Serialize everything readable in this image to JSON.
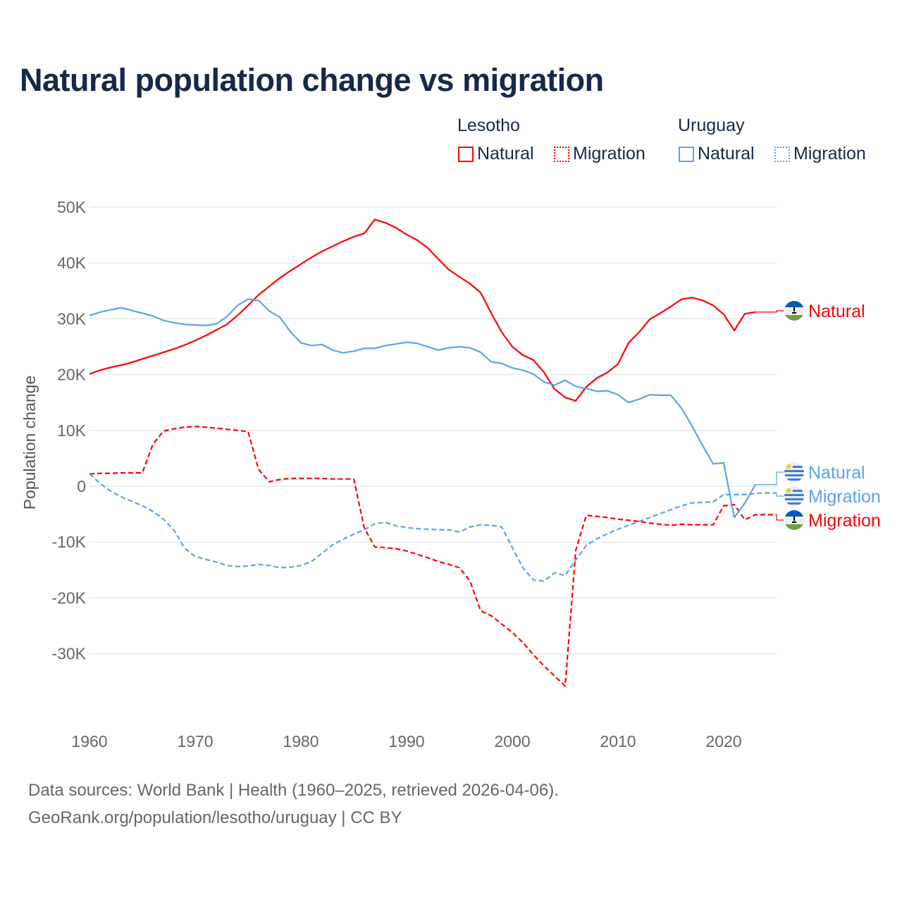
{
  "title": "Natural population change vs migration",
  "legend": {
    "groups": [
      {
        "name": "Lesotho",
        "items": [
          "Natural",
          "Migration"
        ],
        "color": "#ff0000"
      },
      {
        "name": "Uruguay",
        "items": [
          "Natural",
          "Migration"
        ],
        "color": "#5ba3ec"
      }
    ]
  },
  "footer": {
    "line1": "Data sources: World Bank | Health (1960–2025, retrieved 2026-04-06).",
    "line2": "GeoRank.org/population/lesotho/uruguay | CC BY"
  },
  "chart_data": {
    "type": "line",
    "title": "Natural population change vs migration",
    "xlabel": "",
    "ylabel": "Population change",
    "xlim": [
      1960,
      2025
    ],
    "ylim": [
      -40000,
      50000
    ],
    "x_ticks": [
      1960,
      1970,
      1980,
      1990,
      2000,
      2010,
      2020
    ],
    "x_tick_labels": [
      "1960",
      "1970",
      "1980",
      "1990",
      "2000",
      "2010",
      "2020"
    ],
    "y_ticks": [
      50000,
      40000,
      30000,
      20000,
      10000,
      0,
      -10000,
      -20000,
      -30000
    ],
    "y_tick_labels": [
      "50K",
      "40K",
      "30K",
      "20K",
      "10K",
      "0",
      "-10K",
      "-20K",
      "-30K"
    ],
    "grid": true,
    "legend_position": "top-right",
    "series": [
      {
        "name": "Lesotho Natural",
        "label": "Natural",
        "flag": "lesotho",
        "color": "#ff0000",
        "dash": false,
        "start": 1960,
        "values_k": [
          20.1,
          20.8,
          21.3,
          21.7,
          22.2,
          22.8,
          23.4,
          24.0,
          24.6,
          25.3,
          26.1,
          27.0,
          28.0,
          29.0,
          30.6,
          32.4,
          34.3,
          35.8,
          37.3,
          38.6,
          39.8,
          41.0,
          42.1,
          43.0,
          43.9,
          44.7,
          45.3,
          47.8,
          47.2,
          46.3,
          45.1,
          44.1,
          42.7,
          40.7,
          38.8,
          37.5,
          36.3,
          34.7,
          31.0,
          27.6,
          25.0,
          23.5,
          22.6,
          20.4,
          17.4,
          15.9,
          15.3,
          17.8,
          19.4,
          20.4,
          21.9,
          25.7,
          27.6,
          29.9,
          31.0,
          32.2,
          33.5,
          33.8,
          33.3,
          32.4,
          30.8,
          27.9,
          30.9,
          31.2
        ]
      },
      {
        "name": "Lesotho Migration",
        "label": "Migration",
        "flag": "lesotho",
        "color": "#ff0000",
        "dash": true,
        "start": 1960,
        "values_k": [
          2.2,
          2.3,
          2.3,
          2.4,
          2.4,
          2.4,
          7.5,
          9.9,
          10.3,
          10.6,
          10.7,
          10.6,
          10.4,
          10.2,
          10.0,
          9.8,
          3.0,
          0.8,
          1.2,
          1.4,
          1.4,
          1.4,
          1.4,
          1.3,
          1.3,
          1.3,
          -7.5,
          -10.9,
          -11.0,
          -11.2,
          -11.6,
          -12.2,
          -12.8,
          -13.5,
          -14.0,
          -14.6,
          -17.0,
          -22.3,
          -23.2,
          -24.7,
          -26.2,
          -28.0,
          -30.2,
          -32.2,
          -34.0,
          -35.8,
          -11.5,
          -5.2,
          -5.4,
          -5.6,
          -5.9,
          -6.1,
          -6.3,
          -6.6,
          -6.8,
          -7.0,
          -6.8,
          -6.9,
          -6.9,
          -6.9,
          -3.5,
          -3.3,
          -6.0,
          -5.1,
          -5.1,
          -5.1
        ]
      },
      {
        "name": "Uruguay Natural",
        "label": "Natural",
        "flag": "uruguay",
        "color": "#5ba3ec",
        "dash": false,
        "start": 1960,
        "values_k": [
          30.6,
          31.2,
          31.6,
          32.0,
          31.5,
          31.0,
          30.5,
          29.7,
          29.3,
          29.0,
          28.9,
          28.8,
          29.1,
          30.4,
          32.4,
          33.5,
          33.3,
          31.4,
          30.3,
          27.7,
          25.7,
          25.2,
          25.4,
          24.4,
          23.9,
          24.2,
          24.7,
          24.7,
          25.2,
          25.5,
          25.8,
          25.6,
          25.0,
          24.4,
          24.8,
          25.0,
          24.8,
          24.0,
          22.3,
          22.0,
          21.2,
          20.8,
          20.1,
          18.7,
          18.1,
          19.0,
          17.9,
          17.5,
          17.0,
          17.1,
          16.4,
          15.0,
          15.6,
          16.4,
          16.3,
          16.3,
          14.0,
          10.8,
          7.3,
          4.0,
          4.2,
          -5.6,
          -3.0,
          0.3
        ]
      },
      {
        "name": "Uruguay Migration",
        "label": "Migration",
        "flag": "uruguay",
        "color": "#5ba3ec",
        "dash": true,
        "start": 1960,
        "values_k": [
          2.2,
          0.5,
          -0.9,
          -1.9,
          -2.7,
          -3.5,
          -4.5,
          -5.9,
          -7.9,
          -11.1,
          -12.6,
          -13.1,
          -13.6,
          -14.2,
          -14.4,
          -14.3,
          -14.0,
          -14.2,
          -14.6,
          -14.5,
          -14.2,
          -13.5,
          -12.0,
          -10.5,
          -9.5,
          -8.6,
          -7.8,
          -6.7,
          -6.5,
          -7.1,
          -7.4,
          -7.6,
          -7.7,
          -7.8,
          -7.8,
          -8.2,
          -7.3,
          -6.9,
          -7.0,
          -7.3,
          -11.0,
          -14.6,
          -16.8,
          -17.0,
          -15.5,
          -16.0,
          -13.2,
          -10.6,
          -9.4,
          -8.5,
          -7.7,
          -7.0,
          -6.3,
          -5.6,
          -4.9,
          -4.2,
          -3.5,
          -3.0,
          -2.9,
          -2.8,
          -1.5,
          -1.5,
          -1.5,
          -1.3,
          -1.2,
          -1.2
        ]
      }
    ]
  }
}
